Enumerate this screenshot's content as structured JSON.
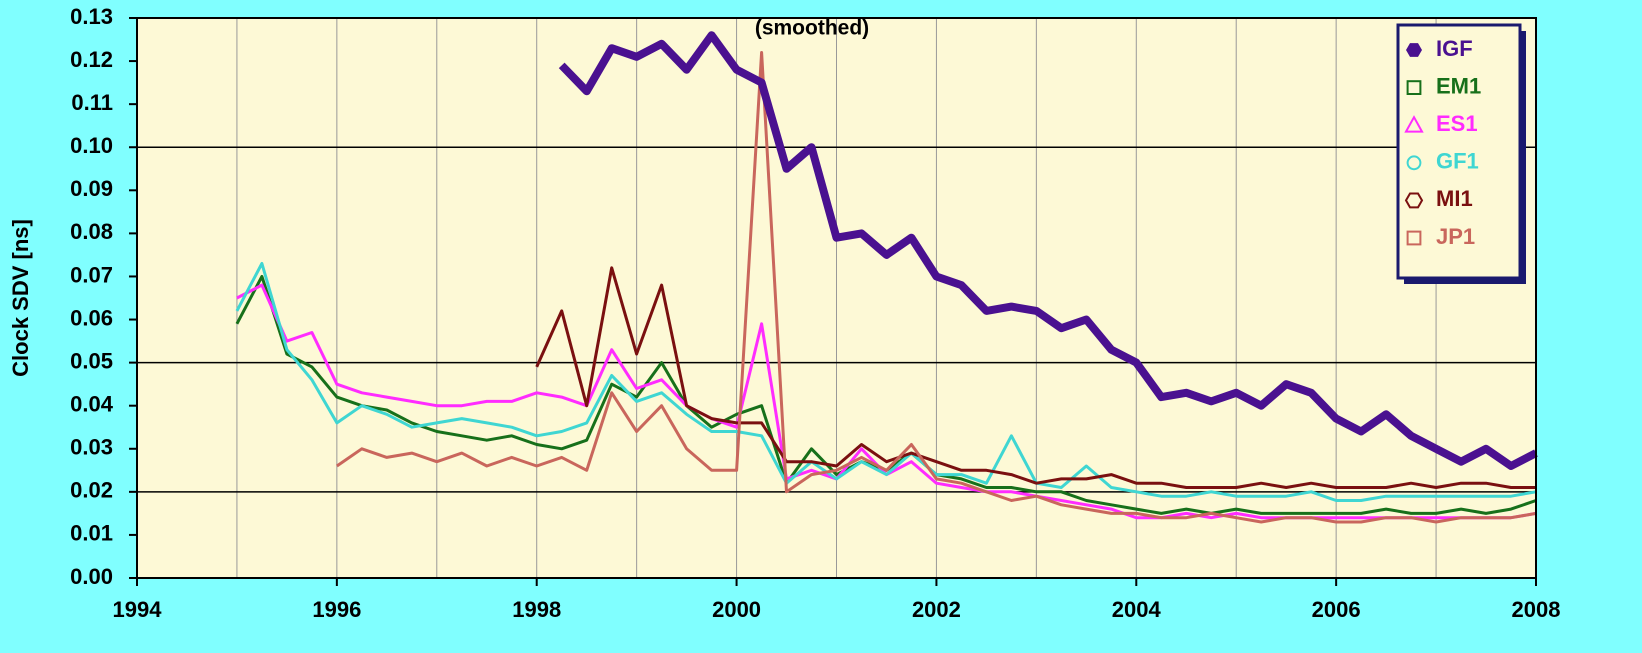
{
  "chart_data": {
    "type": "line",
    "annotation": "(smoothed)",
    "y_label": "Clock SDV [ns]",
    "xlim": [
      1994,
      2008
    ],
    "ylim": [
      0,
      0.13
    ],
    "xticks": [
      1994,
      1996,
      1998,
      2000,
      2002,
      2004,
      2006,
      2008
    ],
    "x_minor_grid": [
      1995,
      1997,
      1999,
      2001,
      2003,
      2005,
      2007
    ],
    "yticks": [
      {
        "value": 0,
        "label": "0.00"
      },
      {
        "value": 0.01,
        "label": "0.01"
      },
      {
        "value": 0.02,
        "label": "0.02"
      },
      {
        "value": 0.03,
        "label": "0.03"
      },
      {
        "value": 0.04,
        "label": "0.04"
      },
      {
        "value": 0.05,
        "label": "0.05"
      },
      {
        "value": 0.06,
        "label": "0.06"
      },
      {
        "value": 0.07,
        "label": "0.07"
      },
      {
        "value": 0.08,
        "label": "0.08"
      },
      {
        "value": 0.09,
        "label": "0.09"
      },
      {
        "value": 0.1,
        "label": "0.10"
      },
      {
        "value": 0.11,
        "label": "0.11"
      },
      {
        "value": 0.12,
        "label": "0.12"
      },
      {
        "value": 0.13,
        "label": "0.13"
      }
    ],
    "y_major_lines": [
      0.02,
      0.05,
      0.1
    ],
    "grid": true,
    "legend": "top-right",
    "x": [
      1995,
      1995.25,
      1995.5,
      1995.75,
      1996,
      1996.25,
      1996.5,
      1996.75,
      1997,
      1997.25,
      1997.5,
      1997.75,
      1998,
      1998.25,
      1998.5,
      1998.75,
      1999,
      1999.25,
      1999.5,
      1999.75,
      2000,
      2000.25,
      2000.5,
      2000.75,
      2001,
      2001.25,
      2001.5,
      2001.75,
      2002,
      2002.25,
      2002.5,
      2002.75,
      2003,
      2003.25,
      2003.5,
      2003.75,
      2004,
      2004.25,
      2004.5,
      2004.75,
      2005,
      2005.25,
      2005.5,
      2005.75,
      2006,
      2006.25,
      2006.5,
      2006.75,
      2007,
      2007.25,
      2007.5,
      2007.75,
      2008
    ],
    "series": [
      {
        "name": "IGF",
        "color": "#4a1190",
        "marker": "hexagon-filled",
        "line_width": 8,
        "values": [
          null,
          null,
          null,
          null,
          null,
          null,
          null,
          null,
          null,
          null,
          null,
          null,
          null,
          0.119,
          0.113,
          0.123,
          0.121,
          0.124,
          0.118,
          0.126,
          0.118,
          0.115,
          0.095,
          0.1,
          0.079,
          0.08,
          0.075,
          0.079,
          0.07,
          0.068,
          0.062,
          0.063,
          0.062,
          0.058,
          0.06,
          0.053,
          0.05,
          0.042,
          0.043,
          0.041,
          0.043,
          0.04,
          0.045,
          0.043,
          0.037,
          0.034,
          0.038,
          0.033,
          0.03,
          0.027,
          0.03,
          0.026,
          0.029
        ]
      },
      {
        "name": "EM1",
        "color": "#17701a",
        "marker": "square",
        "line_width": 3,
        "values": [
          0.059,
          0.07,
          0.052,
          0.049,
          0.042,
          0.04,
          0.039,
          0.036,
          0.034,
          0.033,
          0.032,
          0.033,
          0.031,
          0.03,
          0.032,
          0.045,
          0.042,
          0.05,
          0.04,
          0.035,
          0.038,
          0.04,
          0.022,
          0.03,
          0.024,
          0.027,
          0.025,
          0.029,
          0.024,
          0.023,
          0.021,
          0.021,
          0.02,
          0.02,
          0.018,
          0.017,
          0.016,
          0.015,
          0.016,
          0.015,
          0.016,
          0.015,
          0.015,
          0.015,
          0.015,
          0.015,
          0.016,
          0.015,
          0.015,
          0.016,
          0.015,
          0.016,
          0.018
        ]
      },
      {
        "name": "ES1",
        "color": "#ff2cff",
        "marker": "triangle",
        "line_width": 3,
        "values": [
          0.065,
          0.068,
          0.055,
          0.057,
          0.045,
          0.043,
          0.042,
          0.041,
          0.04,
          0.04,
          0.041,
          0.041,
          0.043,
          0.042,
          0.04,
          0.053,
          0.044,
          0.046,
          0.04,
          0.037,
          0.035,
          0.059,
          0.023,
          0.025,
          0.023,
          0.03,
          0.024,
          0.027,
          0.022,
          0.021,
          0.02,
          0.02,
          0.019,
          0.018,
          0.017,
          0.016,
          0.014,
          0.014,
          0.015,
          0.014,
          0.015,
          0.014,
          0.014,
          0.014,
          0.014,
          0.014,
          0.014,
          0.014,
          0.014,
          0.014,
          0.014,
          0.014,
          0.015
        ]
      },
      {
        "name": "GF1",
        "color": "#3fd6d2",
        "marker": "circle",
        "line_width": 3,
        "values": [
          0.062,
          0.073,
          0.053,
          0.046,
          0.036,
          0.04,
          0.038,
          0.035,
          0.036,
          0.037,
          0.036,
          0.035,
          0.033,
          0.034,
          0.036,
          0.047,
          0.041,
          0.043,
          0.038,
          0.034,
          0.034,
          0.033,
          0.022,
          0.027,
          0.023,
          0.027,
          0.024,
          0.029,
          0.024,
          0.024,
          0.022,
          0.033,
          0.022,
          0.021,
          0.026,
          0.021,
          0.02,
          0.019,
          0.019,
          0.02,
          0.019,
          0.019,
          0.019,
          0.02,
          0.018,
          0.018,
          0.019,
          0.019,
          0.019,
          0.019,
          0.019,
          0.019,
          0.02
        ]
      },
      {
        "name": "MI1",
        "color": "#7a1010",
        "marker": "hexagon",
        "line_width": 3,
        "values": [
          null,
          null,
          null,
          null,
          null,
          null,
          null,
          null,
          null,
          null,
          null,
          null,
          0.049,
          0.062,
          0.04,
          0.072,
          0.052,
          0.068,
          0.04,
          0.037,
          0.036,
          0.036,
          0.027,
          0.027,
          0.026,
          0.031,
          0.027,
          0.029,
          0.027,
          0.025,
          0.025,
          0.024,
          0.022,
          0.023,
          0.023,
          0.024,
          0.022,
          0.022,
          0.021,
          0.021,
          0.021,
          0.022,
          0.021,
          0.022,
          0.021,
          0.021,
          0.021,
          0.022,
          0.021,
          0.022,
          0.022,
          0.021,
          0.021
        ]
      },
      {
        "name": "JP1",
        "color": "#c9665c",
        "marker": "square",
        "line_width": 3,
        "values": [
          null,
          null,
          null,
          null,
          0.026,
          0.03,
          0.028,
          0.029,
          0.027,
          0.029,
          0.026,
          0.028,
          0.026,
          0.028,
          0.025,
          0.043,
          0.034,
          0.04,
          0.03,
          0.025,
          0.025,
          0.122,
          0.02,
          0.024,
          0.025,
          0.028,
          0.025,
          0.031,
          0.023,
          0.022,
          0.02,
          0.018,
          0.019,
          0.017,
          0.016,
          0.015,
          0.015,
          0.014,
          0.014,
          0.015,
          0.014,
          0.013,
          0.014,
          0.014,
          0.013,
          0.013,
          0.014,
          0.014,
          0.013,
          0.014,
          0.014,
          0.014,
          0.015
        ]
      }
    ]
  }
}
